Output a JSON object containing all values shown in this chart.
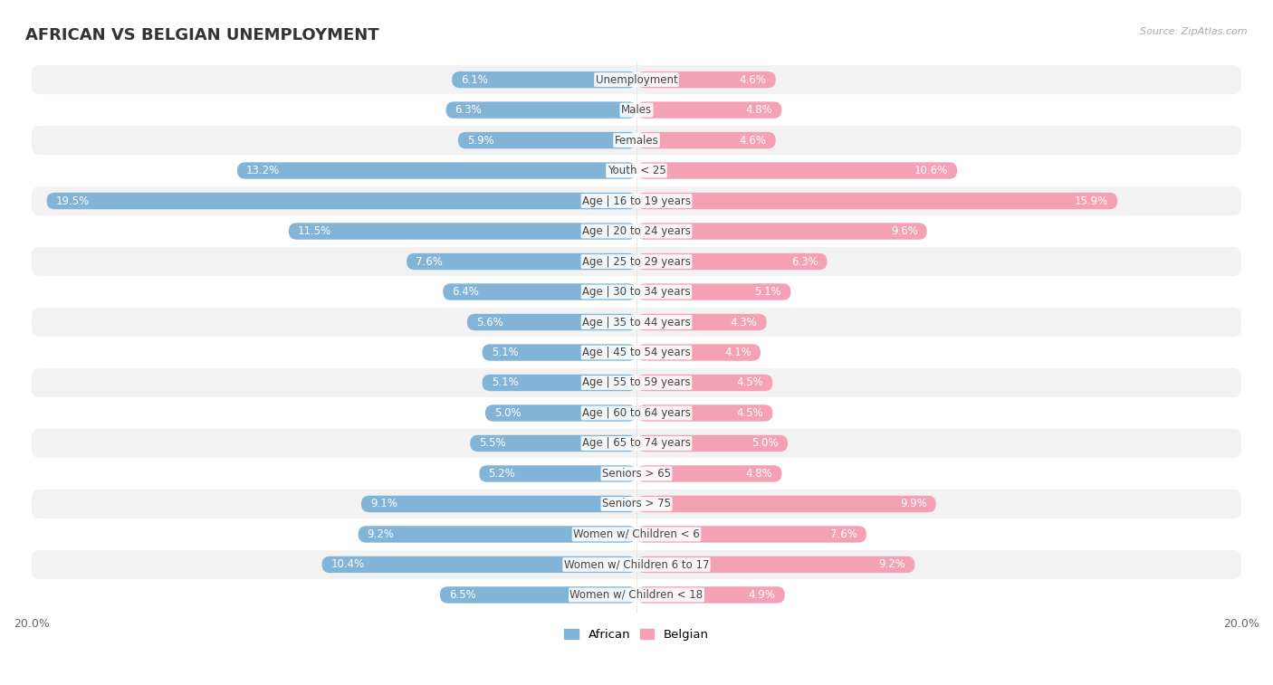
{
  "title": "AFRICAN VS BELGIAN UNEMPLOYMENT",
  "source": "Source: ZipAtlas.com",
  "categories": [
    "Unemployment",
    "Males",
    "Females",
    "Youth < 25",
    "Age | 16 to 19 years",
    "Age | 20 to 24 years",
    "Age | 25 to 29 years",
    "Age | 30 to 34 years",
    "Age | 35 to 44 years",
    "Age | 45 to 54 years",
    "Age | 55 to 59 years",
    "Age | 60 to 64 years",
    "Age | 65 to 74 years",
    "Seniors > 65",
    "Seniors > 75",
    "Women w/ Children < 6",
    "Women w/ Children 6 to 17",
    "Women w/ Children < 18"
  ],
  "african_values": [
    6.1,
    6.3,
    5.9,
    13.2,
    19.5,
    11.5,
    7.6,
    6.4,
    5.6,
    5.1,
    5.1,
    5.0,
    5.5,
    5.2,
    9.1,
    9.2,
    10.4,
    6.5
  ],
  "belgian_values": [
    4.6,
    4.8,
    4.6,
    10.6,
    15.9,
    9.6,
    6.3,
    5.1,
    4.3,
    4.1,
    4.5,
    4.5,
    5.0,
    4.8,
    9.9,
    7.6,
    9.2,
    4.9
  ],
  "african_color": "#82b4d8",
  "belgian_color": "#f4a0b5",
  "background_color": "#ffffff",
  "row_bg_even": "#f2f2f2",
  "row_bg_odd": "#ffffff",
  "axis_max": 20.0,
  "legend_labels": [
    "African",
    "Belgian"
  ],
  "title_fontsize": 13,
  "label_fontsize": 8.5,
  "cat_fontsize": 8.5
}
